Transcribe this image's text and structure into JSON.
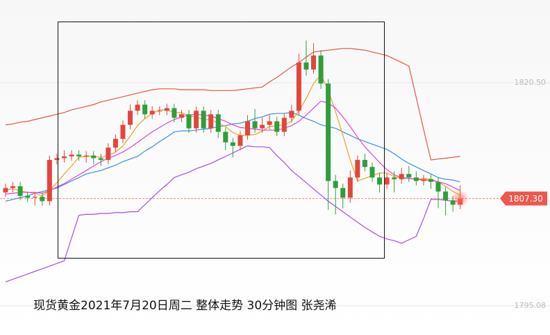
{
  "chart_data": {
    "type": "candlestick",
    "title": "现货黄金2021年7月20日周二 整体走势 30分钟图 张尧浠",
    "ylim": [
      1792.07,
      1829.92
    ],
    "yticks": [
      {
        "value": 1820.5,
        "label": "1820.50"
      },
      {
        "value": 1795.08,
        "label": "1795.08"
      }
    ],
    "grid": true,
    "last_price": {
      "value": 1807.3,
      "label": "1807.30"
    },
    "up_color": "#e2463c",
    "down_color": "#2f9e3b",
    "open": [
      1808.0,
      1808.5,
      1808.7,
      1807.6,
      1807.4,
      1807.5,
      1807.0,
      1811.7,
      1811.9,
      1812.1,
      1812.3,
      1812.1,
      1812.2,
      1811.9,
      1811.7,
      1813.1,
      1814.1,
      1815.7,
      1817.3,
      1818.0,
      1816.9,
      1817.3,
      1817.3,
      1817.6,
      1816.5,
      1816.9,
      1815.3,
      1817.3,
      1815.3,
      1816.9,
      1814.9,
      1813.7,
      1813.3,
      1814.5,
      1816.1,
      1815.3,
      1815.7,
      1816.1,
      1814.9,
      1816.5,
      1817.3,
      1822.8,
      1822.0,
      1823.6,
      1820.4,
      1809.3,
      1808.5,
      1807.4,
      1809.7,
      1811.7,
      1810.9,
      1809.7,
      1808.9,
      1809.7,
      1809.5,
      1810.1,
      1809.7,
      1809.3,
      1809.5,
      1809.2,
      1808.1,
      1807.1,
      1806.6
    ],
    "high": [
      1809.0,
      1809.2,
      1809.2,
      1808.1,
      1808.0,
      1808.0,
      1812.2,
      1812.4,
      1812.8,
      1812.8,
      1812.8,
      1812.7,
      1812.7,
      1812.4,
      1813.6,
      1814.6,
      1816.2,
      1818.0,
      1818.5,
      1818.5,
      1817.8,
      1817.8,
      1818.1,
      1818.1,
      1817.4,
      1817.4,
      1817.8,
      1817.8,
      1817.4,
      1817.4,
      1815.4,
      1814.2,
      1815.0,
      1816.8,
      1817.5,
      1816.5,
      1816.8,
      1816.6,
      1817.0,
      1818.0,
      1823.8,
      1825.3,
      1825.0,
      1824.2,
      1820.9,
      1810.0,
      1809.0,
      1810.5,
      1812.2,
      1812.4,
      1811.4,
      1810.2,
      1810.2,
      1810.4,
      1810.8,
      1811.0,
      1810.4,
      1810.0,
      1810.0,
      1809.7,
      1808.6,
      1807.6,
      1808.8
    ],
    "low": [
      1807.5,
      1808.0,
      1807.1,
      1806.9,
      1806.5,
      1806.5,
      1806.5,
      1811.2,
      1811.4,
      1811.6,
      1811.6,
      1811.4,
      1811.2,
      1811.0,
      1811.2,
      1812.6,
      1813.6,
      1815.2,
      1816.8,
      1816.4,
      1816.4,
      1816.8,
      1816.8,
      1816.0,
      1816.0,
      1814.8,
      1814.8,
      1814.8,
      1814.8,
      1814.2,
      1812.8,
      1812.0,
      1812.8,
      1814.0,
      1814.8,
      1814.8,
      1815.2,
      1814.4,
      1814.4,
      1816.0,
      1816.8,
      1821.3,
      1821.5,
      1819.8,
      1806.0,
      1805.5,
      1806.2,
      1806.8,
      1809.2,
      1810.4,
      1809.2,
      1808.0,
      1808.4,
      1808.0,
      1809.0,
      1809.2,
      1808.8,
      1808.8,
      1808.4,
      1806.2,
      1805.4,
      1805.8,
      1806.1
    ],
    "close": [
      1808.5,
      1808.7,
      1807.6,
      1807.4,
      1807.5,
      1807.0,
      1811.7,
      1811.9,
      1812.1,
      1812.3,
      1812.1,
      1812.2,
      1811.9,
      1811.7,
      1813.1,
      1814.1,
      1815.7,
      1817.3,
      1818.0,
      1816.9,
      1817.3,
      1817.3,
      1817.6,
      1816.5,
      1816.9,
      1815.3,
      1817.3,
      1815.3,
      1816.9,
      1814.9,
      1813.7,
      1813.3,
      1814.5,
      1816.1,
      1815.3,
      1815.7,
      1816.1,
      1814.9,
      1816.5,
      1817.3,
      1822.8,
      1822.0,
      1823.6,
      1820.4,
      1809.3,
      1808.5,
      1807.4,
      1809.7,
      1811.7,
      1810.9,
      1809.7,
      1808.9,
      1809.7,
      1809.5,
      1810.1,
      1809.7,
      1809.3,
      1809.5,
      1809.2,
      1808.1,
      1807.1,
      1806.6,
      1807.3
    ],
    "lines": [
      {
        "color": "#e0583c",
        "values": [
          1815.7,
          1815.8,
          1816.0,
          1816.1,
          1816.3,
          1816.5,
          1816.7,
          1816.9,
          1817.1,
          1817.4,
          1817.6,
          1817.8,
          1818.0,
          1818.3,
          1818.5,
          1818.7,
          1818.9,
          1819.1,
          1819.3,
          1819.5,
          1819.7,
          1819.8,
          1819.8,
          1819.8,
          1819.7,
          1819.7,
          1819.7,
          1819.7,
          1819.6,
          1819.6,
          1819.6,
          1819.6,
          1819.7,
          1819.8,
          1819.9,
          1820.0,
          1820.6,
          1821.1,
          1821.7,
          1822.3,
          1822.8,
          1823.4,
          1824.0,
          1824.1,
          1824.2,
          1824.3,
          1824.4,
          1824.4,
          1824.3,
          1824.2,
          1824.0,
          1823.8,
          1823.6,
          1823.2,
          1822.8,
          1822.4,
          1818.8,
          1815.2,
          1811.7,
          1811.8,
          1811.9,
          1812.0,
          1812.1
        ]
      },
      {
        "color": "#3d8fe0",
        "values": [
          1807.0,
          1807.2,
          1807.4,
          1807.6,
          1807.9,
          1808.1,
          1808.3,
          1808.5,
          1808.9,
          1809.3,
          1809.7,
          1810.1,
          1810.3,
          1810.5,
          1810.8,
          1811.1,
          1811.5,
          1811.8,
          1812.1,
          1812.7,
          1813.2,
          1813.8,
          1814.3,
          1814.9,
          1815.0,
          1815.0,
          1815.1,
          1815.2,
          1815.3,
          1815.5,
          1815.6,
          1815.8,
          1815.9,
          1816.1,
          1816.4,
          1816.6,
          1816.9,
          1817.0,
          1817.0,
          1817.1,
          1816.8,
          1816.4,
          1816.1,
          1815.7,
          1815.5,
          1815.3,
          1814.9,
          1814.5,
          1814.1,
          1813.8,
          1813.5,
          1813.2,
          1812.9,
          1812.4,
          1811.8,
          1811.3,
          1810.9,
          1810.5,
          1810.1,
          1809.7,
          1809.5,
          1809.4,
          1809.2
        ]
      },
      {
        "color": "#a24fe0",
        "values": [
          1797.8,
          1798.1,
          1798.4,
          1798.7,
          1799.0,
          1799.3,
          1799.6,
          1799.9,
          1800.2,
          1802.8,
          1805.4,
          1805.5,
          1805.5,
          1805.6,
          1805.6,
          1805.7,
          1805.7,
          1805.8,
          1805.8,
          1806.6,
          1807.4,
          1808.2,
          1808.9,
          1809.7,
          1810.0,
          1810.3,
          1810.7,
          1811.0,
          1811.3,
          1811.7,
          1812.1,
          1812.5,
          1812.9,
          1813.3,
          1813.2,
          1813.2,
          1813.1,
          1812.2,
          1811.4,
          1810.5,
          1809.8,
          1809.1,
          1808.4,
          1807.7,
          1807.0,
          1806.4,
          1805.8,
          1805.2,
          1804.6,
          1804.0,
          1803.5,
          1803.0,
          1802.7,
          1802.5,
          1802.2,
          1802.6,
          1803.0,
          1805.0,
          1807.2,
          1807.2,
          1807.1,
          1807.0,
          1807.0
        ]
      },
      {
        "color": "#f0a020",
        "values": [
          1808.3,
          1808.4,
          1808.2,
          1808.0,
          1807.9,
          1807.6,
          1808.2,
          1809.1,
          1810.1,
          1811.0,
          1812.0,
          1812.1,
          1812.1,
          1812.0,
          1812.2,
          1812.6,
          1813.3,
          1814.4,
          1815.6,
          1816.4,
          1817.0,
          1817.4,
          1817.4,
          1817.1,
          1817.1,
          1816.7,
          1816.6,
          1816.3,
          1816.3,
          1815.9,
          1815.5,
          1814.8,
          1814.5,
          1814.5,
          1814.6,
          1815.0,
          1815.5,
          1815.6,
          1815.7,
          1816.1,
          1817.3,
          1818.7,
          1820.4,
          1821.4,
          1819.7,
          1817.2,
          1814.5,
          1811.7,
          1809.3,
          1809.6,
          1809.9,
          1810.2,
          1810.2,
          1809.8,
          1809.6,
          1809.6,
          1809.5,
          1809.6,
          1809.5,
          1809.2,
          1808.7,
          1808.1,
          1807.7
        ]
      },
      {
        "color": "#e040e0",
        "values": [
          1807.8,
          1807.9,
          1808.0,
          1808.0,
          1808.0,
          1807.9,
          1808.2,
          1808.6,
          1809.0,
          1809.5,
          1810.0,
          1810.5,
          1811.0,
          1811.5,
          1811.9,
          1812.2,
          1812.6,
          1813.1,
          1813.7,
          1814.3,
          1814.9,
          1815.4,
          1815.9,
          1816.3,
          1816.6,
          1816.8,
          1816.9,
          1816.8,
          1816.7,
          1816.4,
          1816.1,
          1815.7,
          1815.4,
          1815.3,
          1815.2,
          1815.1,
          1815.1,
          1815.1,
          1815.3,
          1815.6,
          1816.1,
          1816.8,
          1817.6,
          1818.4,
          1818.2,
          1817.6,
          1816.6,
          1815.5,
          1814.3,
          1813.2,
          1812.3,
          1811.4,
          1810.6,
          1810.0,
          1809.7,
          1809.6,
          1809.5,
          1809.4,
          1809.4,
          1809.2,
          1809.0,
          1808.6,
          1808.2
        ]
      }
    ]
  }
}
